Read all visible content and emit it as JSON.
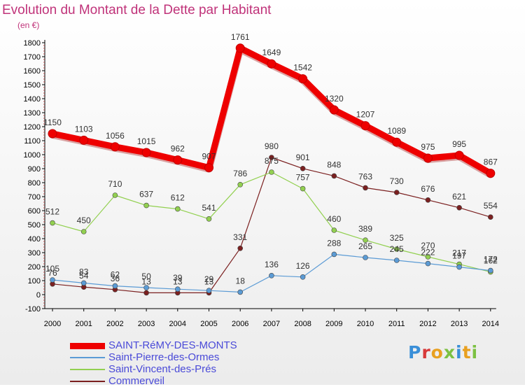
{
  "title": "Evolution du Montant de la Dette par Habitant",
  "unit_label": "(en €)",
  "logo": {
    "text": "Proxiti"
  },
  "chart_data": {
    "type": "line",
    "x": [
      "2000",
      "2001",
      "2002",
      "2003",
      "2004",
      "2005",
      "2006",
      "2007",
      "2008",
      "2009",
      "2010",
      "2011",
      "2012",
      "2013",
      "2014"
    ],
    "ylim": [
      -100,
      1800
    ],
    "yticks": [
      -100,
      0,
      100,
      200,
      300,
      400,
      500,
      600,
      700,
      800,
      900,
      1000,
      1100,
      1200,
      1300,
      1400,
      1500,
      1600,
      1700,
      1800
    ],
    "grid": false,
    "legend_position": "bottom-left",
    "series": [
      {
        "name": "SAINT-RéMY-DES-MONTS",
        "color": "#ee0000",
        "stroke_width": "thick",
        "values": [
          1150,
          1103,
          1056,
          1015,
          962,
          907,
          1761,
          1649,
          1542,
          1320,
          1207,
          1089,
          975,
          995,
          867
        ],
        "labels": [
          "1150",
          "1103",
          "1056",
          "1015",
          "962",
          "907",
          "1761",
          "1649",
          "1542",
          "1320",
          "1207",
          "1089",
          "975",
          "995",
          "867"
        ]
      },
      {
        "name": "Saint-Pierre-des-Ormes",
        "color": "#5b9bd5",
        "stroke_width": "thin",
        "values": [
          105,
          83,
          62,
          50,
          39,
          29,
          18,
          136,
          126,
          288,
          265,
          245,
          222,
          197,
          172
        ],
        "labels": [
          "105",
          "83",
          "62",
          "50",
          "39",
          "29",
          "18",
          "136",
          "126",
          "288",
          "265",
          "245",
          "222",
          "197",
          "172"
        ]
      },
      {
        "name": "Saint-Vincent-des-Prés",
        "color": "#92d050",
        "stroke_width": "thin",
        "values": [
          512,
          450,
          710,
          637,
          612,
          541,
          786,
          875,
          757,
          460,
          389,
          325,
          270,
          217,
          162
        ],
        "labels": [
          "512",
          "450",
          "710",
          "637",
          "612",
          "541",
          "786",
          "875",
          "757",
          "460",
          "389",
          "325",
          "270",
          "217",
          "162"
        ]
      },
      {
        "name": "Commerveil",
        "color": "#7b2020",
        "stroke_width": "thin",
        "values": [
          76,
          54,
          36,
          13,
          13,
          13,
          331,
          980,
          901,
          848,
          763,
          730,
          676,
          621,
          554
        ],
        "labels": [
          "76",
          "54",
          "36",
          "13",
          "13",
          "13",
          "331",
          "980",
          "901",
          "848",
          "763",
          "730",
          "676",
          "621",
          "554"
        ]
      }
    ]
  }
}
